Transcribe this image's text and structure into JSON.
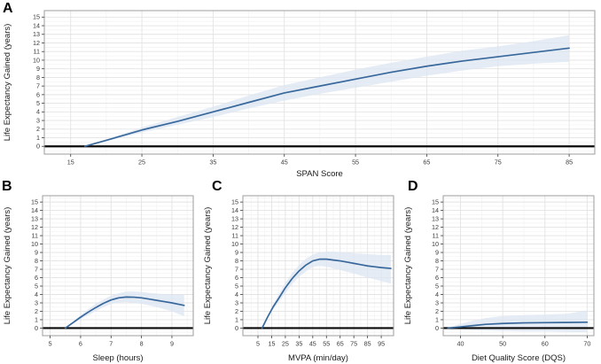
{
  "colors": {
    "line": "#38689b",
    "band": "#dce5f1",
    "zero_line": "#0a0a0a",
    "grid_major": "#e3e3e3",
    "grid_minor": "#f2f2f2",
    "panel_border": "#9c9c9c",
    "tick_text": "#3c3c3c",
    "title_text": "#1a1a1a",
    "background": "#ffffff"
  },
  "chart_data": [
    {
      "panel": "A",
      "type": "line",
      "xlabel": "SPAN Score",
      "ylabel": "Life Expectancy Gained (years)",
      "xlim": [
        11.3,
        88.6
      ],
      "ylim": [
        -0.9,
        15.75
      ],
      "xticks": [
        15,
        25,
        35,
        45,
        55,
        65,
        75,
        85
      ],
      "yticks": [
        0,
        1,
        2,
        3,
        4,
        5,
        6,
        7,
        8,
        9,
        10,
        11,
        12,
        13,
        14,
        15
      ],
      "grid": true,
      "zero_line": 0,
      "series_name": "Life expectancy gained",
      "x": [
        17,
        20,
        25,
        30,
        35,
        40,
        45,
        50,
        55,
        60,
        65,
        70,
        75,
        80,
        85
      ],
      "y": [
        0,
        0.7,
        1.9,
        2.9,
        4.0,
        5.1,
        6.2,
        7.0,
        7.8,
        8.6,
        9.3,
        9.9,
        10.4,
        10.9,
        11.4
      ],
      "band_upper": [
        0,
        0.8,
        2.2,
        3.4,
        4.6,
        5.9,
        7.1,
        8.0,
        8.9,
        9.7,
        10.4,
        11.1,
        11.6,
        12.2,
        12.9
      ],
      "band_lower": [
        0,
        0.6,
        1.6,
        2.5,
        3.4,
        4.4,
        5.3,
        6.1,
        6.8,
        7.5,
        8.2,
        8.8,
        9.3,
        9.6,
        9.8
      ]
    },
    {
      "panel": "B",
      "type": "line",
      "xlabel": "Sleep (hours)",
      "ylabel": "Life Expectancy Gained (years)",
      "xlim": [
        4.75,
        9.7
      ],
      "ylim": [
        -0.9,
        15.75
      ],
      "xticks": [
        5,
        6,
        7,
        8,
        9
      ],
      "yticks": [
        0,
        1,
        2,
        3,
        4,
        5,
        6,
        7,
        8,
        9,
        10,
        11,
        12,
        13,
        14,
        15
      ],
      "grid": true,
      "zero_line": 0,
      "series_name": "Life expectancy gained",
      "x": [
        5.5,
        5.75,
        6.0,
        6.25,
        6.5,
        6.75,
        7.0,
        7.25,
        7.5,
        7.75,
        8.0,
        8.25,
        8.5,
        8.75,
        9.0,
        9.2,
        9.4
      ],
      "y": [
        0,
        0.65,
        1.3,
        1.9,
        2.45,
        2.95,
        3.35,
        3.6,
        3.7,
        3.68,
        3.6,
        3.45,
        3.3,
        3.15,
        3.0,
        2.85,
        2.7
      ],
      "band_upper": [
        0,
        0.75,
        1.55,
        2.25,
        2.9,
        3.4,
        3.85,
        4.15,
        4.35,
        4.35,
        4.3,
        4.2,
        4.1,
        4.05,
        4.0,
        4.0,
        4.0
      ],
      "band_lower": [
        0,
        0.55,
        1.05,
        1.55,
        2.0,
        2.5,
        2.85,
        3.05,
        3.1,
        3.0,
        2.9,
        2.7,
        2.5,
        2.25,
        2.0,
        1.7,
        1.4
      ]
    },
    {
      "panel": "C",
      "type": "line",
      "xlabel": "MVPA (min/day)",
      "ylabel": "Life Expectancy Gained (years)",
      "xlim": [
        -6,
        104
      ],
      "ylim": [
        -0.9,
        15.75
      ],
      "xticks": [
        5,
        15,
        25,
        35,
        45,
        55,
        65,
        75,
        85,
        95
      ],
      "yticks": [
        0,
        1,
        2,
        3,
        4,
        5,
        6,
        7,
        8,
        9,
        10,
        11,
        12,
        13,
        14,
        15
      ],
      "grid": true,
      "zero_line": 0,
      "series_name": "Life expectancy gained",
      "x": [
        8,
        12,
        16,
        20,
        25,
        30,
        35,
        40,
        45,
        50,
        55,
        60,
        65,
        70,
        75,
        80,
        85,
        90,
        95,
        102
      ],
      "y": [
        0,
        1.3,
        2.5,
        3.5,
        4.8,
        5.9,
        6.8,
        7.5,
        8.0,
        8.2,
        8.2,
        8.1,
        8.0,
        7.85,
        7.7,
        7.55,
        7.4,
        7.3,
        7.2,
        7.1
      ],
      "band_upper": [
        0,
        1.45,
        2.8,
        3.95,
        5.4,
        6.55,
        7.5,
        8.25,
        8.75,
        9.0,
        9.1,
        9.1,
        9.05,
        9.0,
        8.9,
        8.85,
        8.8,
        8.75,
        8.7,
        8.7
      ],
      "band_lower": [
        0,
        1.15,
        2.2,
        3.05,
        4.2,
        5.25,
        6.1,
        6.75,
        7.25,
        7.4,
        7.3,
        7.1,
        6.9,
        6.7,
        6.5,
        6.25,
        6.0,
        5.8,
        5.6,
        5.3
      ]
    },
    {
      "panel": "D",
      "type": "line",
      "xlabel": "Diet Quality Score (DQS)",
      "ylabel": "Life Expectancy Gained (years)",
      "xlim": [
        35.9,
        71.6
      ],
      "ylim": [
        -0.9,
        15.75
      ],
      "xticks": [
        40,
        50,
        60,
        70
      ],
      "yticks": [
        0,
        1,
        2,
        3,
        4,
        5,
        6,
        7,
        8,
        9,
        10,
        11,
        12,
        13,
        14,
        15
      ],
      "grid": true,
      "zero_line": 0,
      "series_name": "Life expectancy gained",
      "x": [
        37,
        40,
        43,
        46,
        50,
        55,
        60,
        65,
        70
      ],
      "y": [
        0,
        0.15,
        0.3,
        0.45,
        0.55,
        0.62,
        0.65,
        0.67,
        0.7
      ],
      "band_upper": [
        0.05,
        0.5,
        0.9,
        1.2,
        1.45,
        1.55,
        1.6,
        1.7,
        2.1
      ],
      "band_lower": [
        -0.05,
        -0.15,
        -0.25,
        -0.3,
        -0.35,
        -0.4,
        -0.4,
        -0.45,
        -0.5
      ]
    }
  ]
}
